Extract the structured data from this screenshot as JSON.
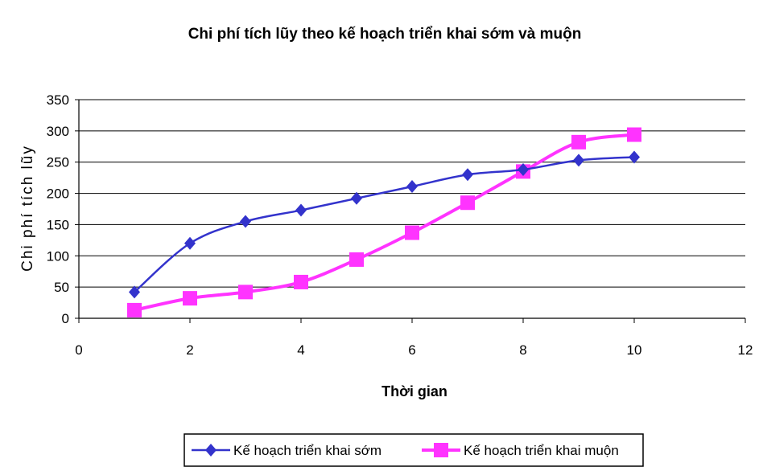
{
  "chart_data": {
    "type": "line",
    "title": "Chi phí tích lũy theo kế hoạch triển khai sớm và muộn",
    "xlabel": "Thời gian",
    "ylabel": "Chi phí tích lũy",
    "xlim": [
      0,
      12
    ],
    "ylim": [
      0,
      350
    ],
    "xticks": [
      0,
      2,
      4,
      6,
      8,
      10,
      12
    ],
    "yticks": [
      0,
      50,
      100,
      150,
      200,
      250,
      300,
      350
    ],
    "x": [
      1,
      2,
      3,
      4,
      5,
      6,
      7,
      8,
      9,
      10
    ],
    "grid": "horizontal",
    "legend_position": "bottom",
    "series": [
      {
        "name": "Kế hoạch triển khai sớm",
        "color": "#3333CC",
        "marker": "diamond",
        "values": [
          42,
          120,
          155,
          173,
          192,
          211,
          230,
          238,
          253,
          258
        ]
      },
      {
        "name": "Kế hoạch triển khai muộn",
        "color": "#FF33FF",
        "marker": "square",
        "values": [
          13,
          32,
          42,
          58,
          94,
          137,
          185,
          235,
          282,
          294
        ]
      }
    ]
  }
}
